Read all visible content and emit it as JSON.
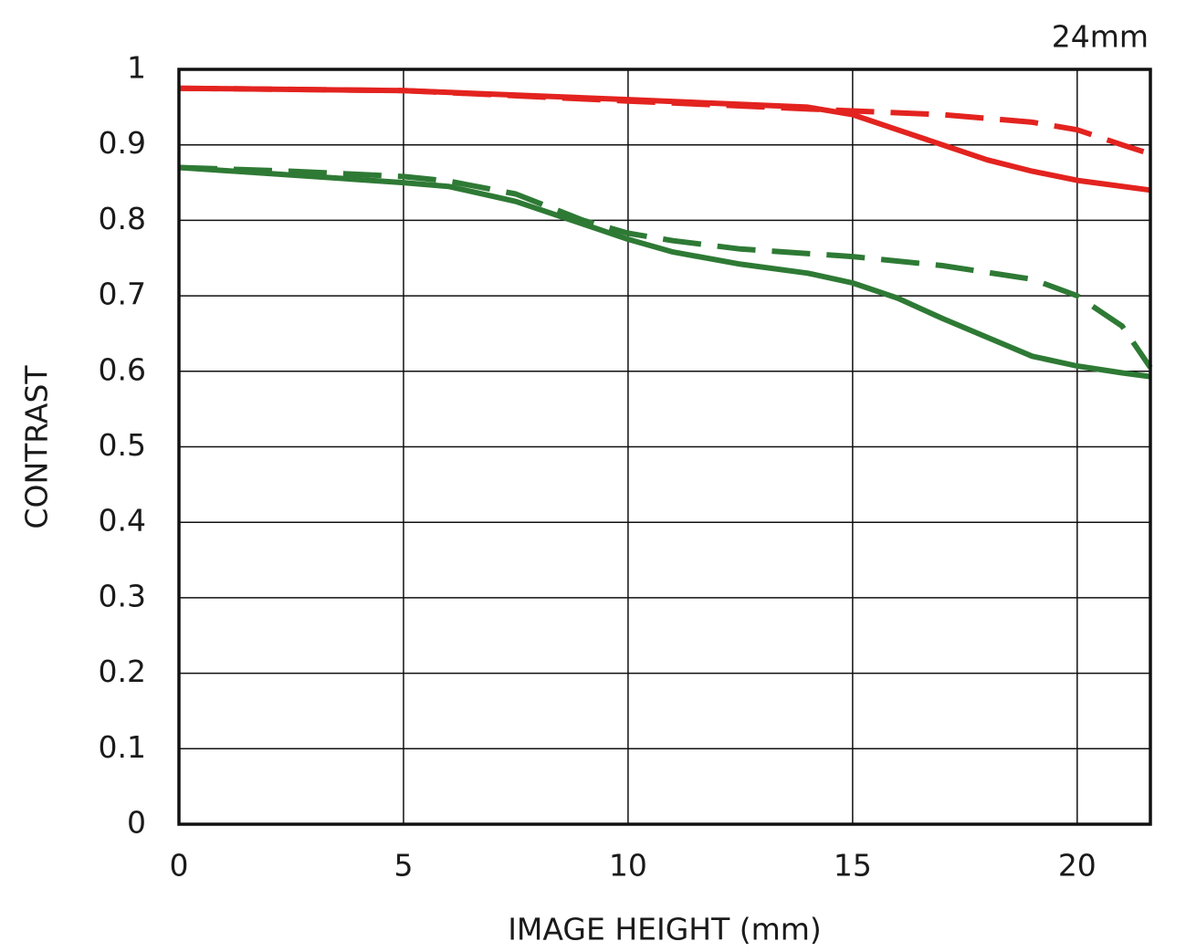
{
  "chart_data": {
    "type": "line",
    "annotation": "24mm",
    "xlabel": "IMAGE HEIGHT (mm)",
    "ylabel": "CONTRAST",
    "xlim": [
      0,
      21.63
    ],
    "ylim": [
      0,
      1
    ],
    "xticks": [
      0,
      5,
      10,
      15,
      20
    ],
    "yticks": [
      0,
      0.1,
      0.2,
      0.3,
      0.4,
      0.5,
      0.6,
      0.7,
      0.8,
      0.9,
      1
    ],
    "grid": true,
    "series": [
      {
        "color": "#e3231f",
        "style": "solid",
        "x": [
          0,
          5,
          10,
          14,
          15,
          16,
          17,
          18,
          19,
          20,
          21.63
        ],
        "values": [
          0.975,
          0.972,
          0.96,
          0.95,
          0.94,
          0.92,
          0.9,
          0.88,
          0.865,
          0.853,
          0.84
        ]
      },
      {
        "color": "#e3231f",
        "style": "dashed",
        "x": [
          0,
          5,
          10,
          15,
          17,
          19,
          20,
          21,
          21.63
        ],
        "values": [
          0.975,
          0.972,
          0.958,
          0.945,
          0.94,
          0.93,
          0.92,
          0.9,
          0.888
        ]
      },
      {
        "color": "#2e7a35",
        "style": "solid",
        "x": [
          0,
          2.5,
          5,
          6,
          7.5,
          9,
          10,
          11,
          12.5,
          14,
          15,
          16,
          17,
          18,
          19,
          20,
          21,
          21.63
        ],
        "values": [
          0.87,
          0.86,
          0.85,
          0.845,
          0.825,
          0.795,
          0.775,
          0.758,
          0.742,
          0.73,
          0.717,
          0.697,
          0.67,
          0.645,
          0.62,
          0.607,
          0.598,
          0.593
        ]
      },
      {
        "color": "#2e7a35",
        "style": "dashed",
        "x": [
          0,
          2.5,
          5,
          6,
          7.5,
          9,
          10,
          11,
          12.5,
          15,
          17,
          19,
          20,
          21,
          21.63
        ],
        "values": [
          0.87,
          0.865,
          0.858,
          0.852,
          0.835,
          0.8,
          0.783,
          0.773,
          0.762,
          0.752,
          0.74,
          0.722,
          0.7,
          0.66,
          0.605
        ]
      }
    ]
  }
}
